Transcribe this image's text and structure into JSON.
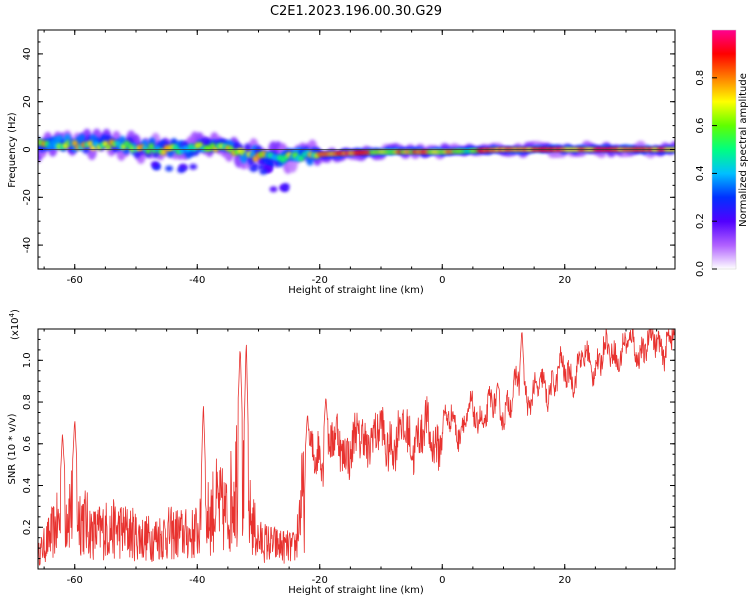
{
  "figure": {
    "title": "C2E1.2023.196.00.30.G29"
  },
  "chart_data": [
    {
      "type": "heatmap",
      "xlabel": "Height of straight line (km)",
      "ylabel": "Frequency (Hz)",
      "xlim": [
        -66,
        38
      ],
      "ylim": [
        -50,
        50
      ],
      "xticks": [
        -60,
        -40,
        -20,
        0,
        20
      ],
      "xtick_labels": [
        "-60",
        "-40",
        "-20",
        "0",
        "20"
      ],
      "yticks": [
        -40,
        -20,
        0,
        20,
        40
      ],
      "ytick_labels": [
        "-40",
        "-20",
        "0",
        "20",
        "40"
      ],
      "colorbar": {
        "label": "Normalized spectral amplitude",
        "range": [
          0.0,
          1.0
        ],
        "ticks": [
          0.0,
          0.2,
          0.4,
          0.6,
          0.8
        ],
        "tick_labels": [
          "0.0",
          "0.2",
          "0.4",
          "0.6",
          "0.8"
        ],
        "colors": [
          "#ffffff",
          "#b060ff",
          "#5000ff",
          "#0030ff",
          "#00c0ff",
          "#00ff80",
          "#60ff00",
          "#ffff00",
          "#ff8000",
          "#ff0000",
          "#ff0090"
        ]
      },
      "band_center_hz": [
        [
          -66,
          2
        ],
        [
          -60,
          2
        ],
        [
          -55,
          2
        ],
        [
          -50,
          1
        ],
        [
          -45,
          0
        ],
        [
          -40,
          1
        ],
        [
          -35,
          0
        ],
        [
          -30,
          -3
        ],
        [
          -25,
          -3
        ],
        [
          -20,
          -2
        ],
        [
          -10,
          -1
        ],
        [
          0,
          -1
        ],
        [
          10,
          0
        ],
        [
          20,
          0
        ],
        [
          30,
          0
        ],
        [
          38,
          0
        ]
      ],
      "secondary_blobs": [
        {
          "x": -42,
          "y": -8
        },
        {
          "x": -45,
          "y": -7
        },
        {
          "x": -30,
          "y": -7
        },
        {
          "x": -26,
          "y": -16
        },
        {
          "x": -29,
          "y": -9
        }
      ]
    },
    {
      "type": "line",
      "xlabel": "Height of straight line (km)",
      "ylabel": "SNR (10 * v/v)",
      "y_multiplier_label": "(x10",
      "y_multiplier_exp": "4",
      "xlim": [
        -66,
        38
      ],
      "ylim": [
        0.0,
        1.15
      ],
      "xticks": [
        -60,
        -40,
        -20,
        0,
        20
      ],
      "xtick_labels": [
        "-60",
        "-40",
        "-20",
        "0",
        "20"
      ],
      "yticks": [
        0.2,
        0.4,
        0.6,
        0.8,
        1.0
      ],
      "ytick_labels": [
        "0.2",
        "0.4",
        "0.6",
        "0.8",
        "1.0"
      ],
      "color": "#e8322f",
      "envelope": {
        "x": [
          -66,
          -63,
          -61,
          -59,
          -57,
          -55,
          -53,
          -51,
          -49,
          -47,
          -45,
          -43,
          -41,
          -39,
          -37,
          -35,
          -33.5,
          -32,
          -30,
          -28,
          -26,
          -24,
          -23,
          -21,
          -19,
          -17,
          -15,
          -13,
          -11,
          -9,
          -7,
          -5,
          -3,
          -1,
          1,
          3,
          5,
          7,
          9,
          11,
          13,
          15,
          17,
          19,
          21,
          23,
          25,
          27,
          29,
          31,
          33,
          35,
          38
        ],
        "y": [
          0.1,
          0.3,
          0.45,
          0.38,
          0.25,
          0.28,
          0.28,
          0.26,
          0.22,
          0.22,
          0.25,
          0.25,
          0.24,
          0.3,
          0.45,
          0.38,
          0.7,
          0.45,
          0.2,
          0.18,
          0.16,
          0.15,
          0.48,
          0.52,
          0.6,
          0.6,
          0.58,
          0.62,
          0.65,
          0.6,
          0.65,
          0.62,
          0.65,
          0.62,
          0.7,
          0.7,
          0.72,
          0.75,
          0.78,
          0.8,
          0.88,
          0.82,
          0.88,
          0.92,
          0.95,
          0.98,
          1.0,
          1.03,
          1.05,
          1.06,
          1.07,
          1.08,
          1.1
        ]
      },
      "spikes": [
        {
          "x": -60,
          "y": 0.72
        },
        {
          "x": -62,
          "y": 0.65
        },
        {
          "x": -39,
          "y": 0.8
        },
        {
          "x": -33,
          "y": 1.07
        },
        {
          "x": -32,
          "y": 1.1
        },
        {
          "x": -22,
          "y": 0.75
        },
        {
          "x": -19,
          "y": 0.83
        },
        {
          "x": 13,
          "y": 1.15
        }
      ]
    }
  ]
}
